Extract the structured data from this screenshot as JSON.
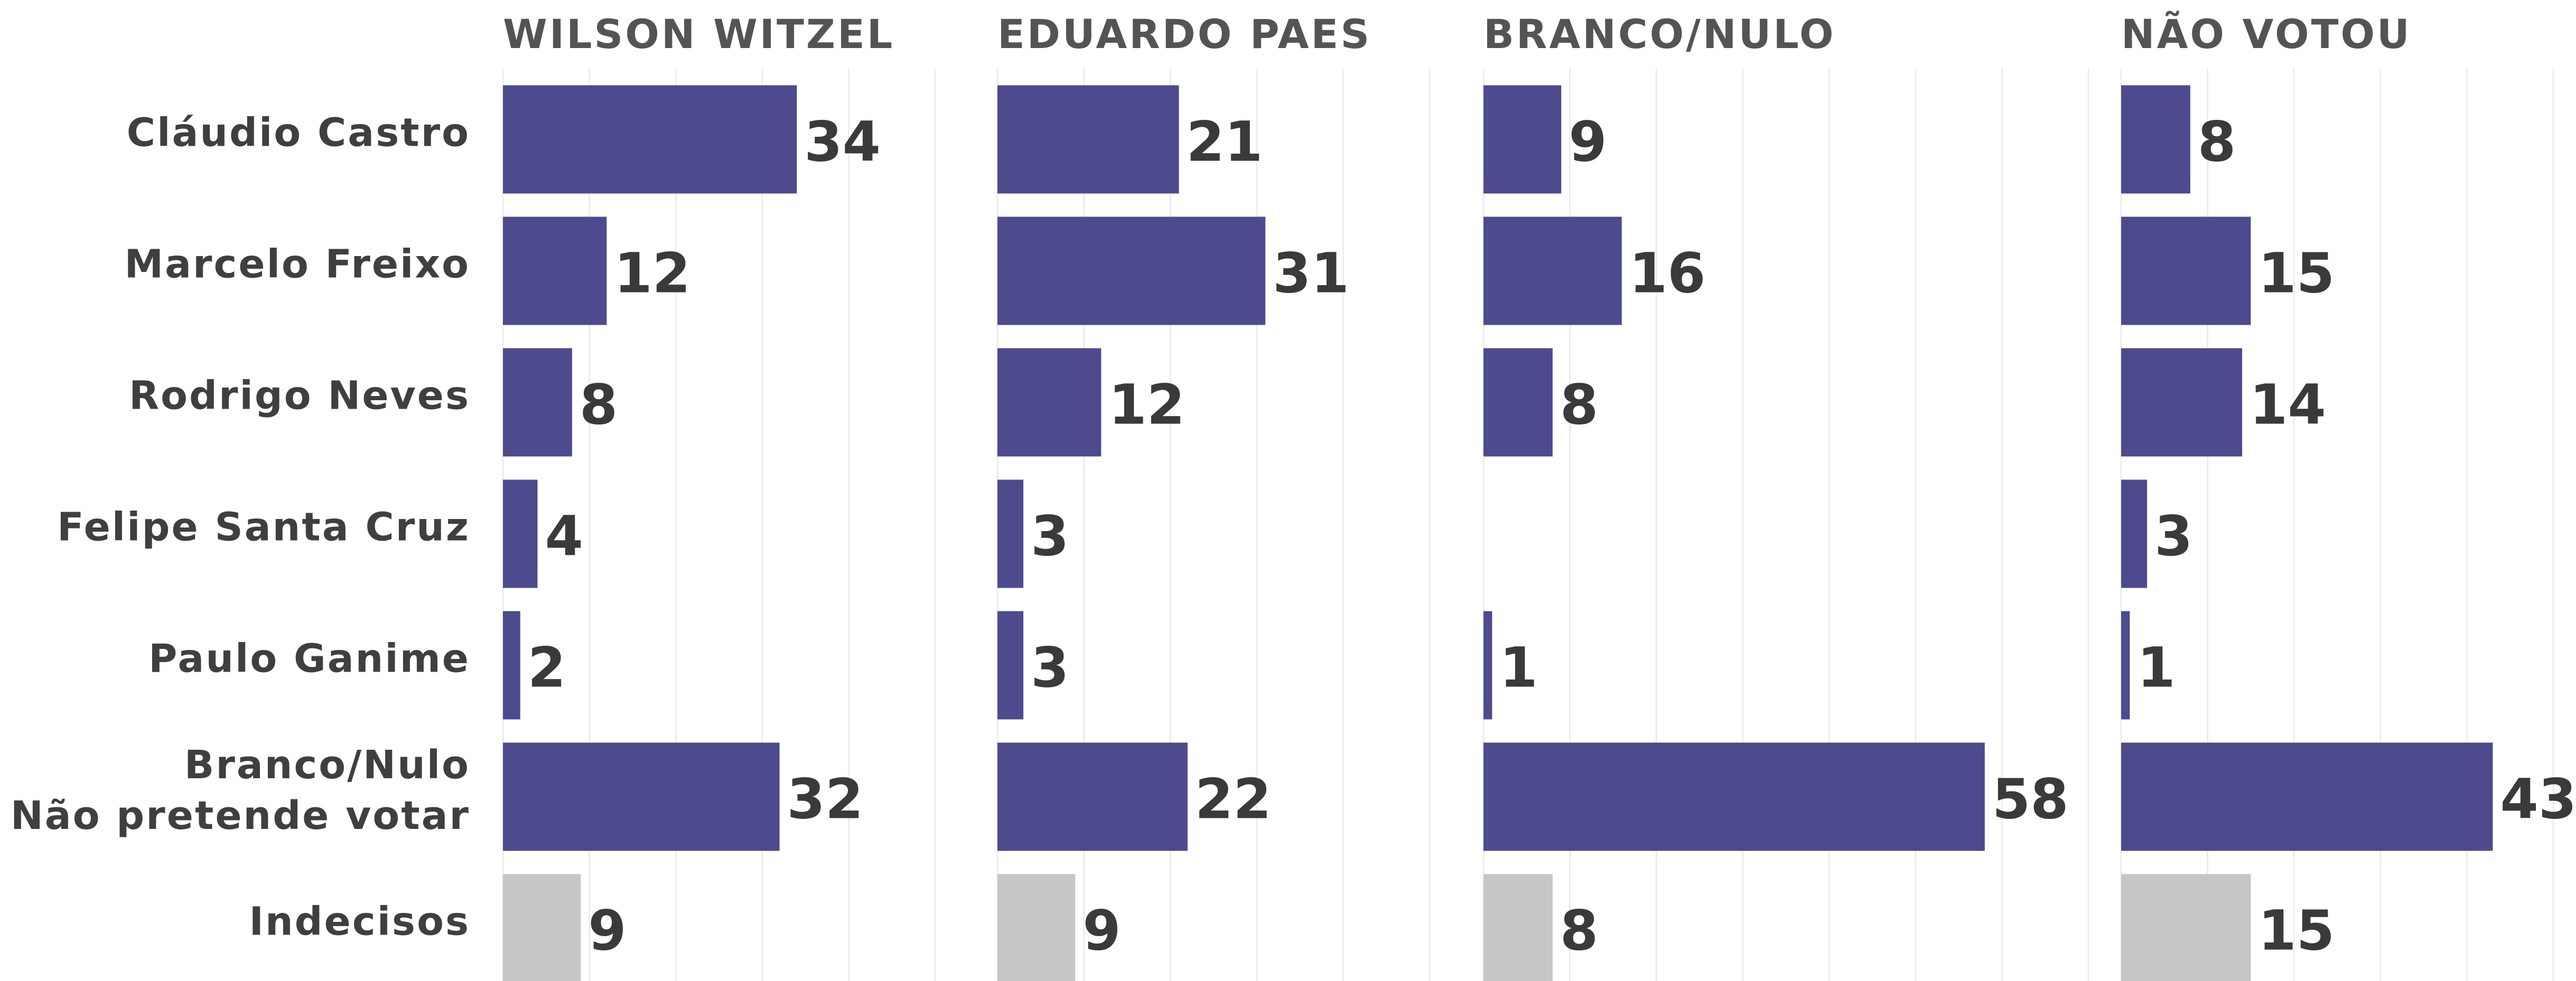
{
  "chart_data": [
    {
      "type": "bar",
      "title": "WILSON WITZEL",
      "categories": [
        "Cláudio Castro",
        "Marcelo Freixo",
        "Rodrigo Neves",
        "Felipe Santa Cruz",
        "Paulo Ganime",
        "Branco/Nulo\nNão pretende votar",
        "Indecisos"
      ],
      "values": [
        34,
        12,
        8,
        4,
        2,
        32,
        9
      ],
      "colors": [
        "#4e4a8e",
        "#4e4a8e",
        "#4e4a8e",
        "#4e4a8e",
        "#4e4a8e",
        "#4e4a8e",
        "#c6c6c6"
      ],
      "xlim": [
        0,
        55
      ],
      "xticks": [
        0,
        10,
        20,
        30,
        40,
        50
      ],
      "grid": true
    },
    {
      "type": "bar",
      "title": "EDUARDO PAES",
      "values": [
        21,
        31,
        12,
        3,
        3,
        22,
        9
      ],
      "colors": [
        "#4e4a8e",
        "#4e4a8e",
        "#4e4a8e",
        "#4e4a8e",
        "#4e4a8e",
        "#4e4a8e",
        "#c6c6c6"
      ],
      "xlim": [
        0,
        55
      ],
      "xticks": [
        0,
        10,
        20,
        30,
        40,
        50
      ],
      "grid": true
    },
    {
      "type": "bar",
      "title": "BRANCO/NULO",
      "values": [
        9,
        16,
        8,
        null,
        1,
        58,
        8
      ],
      "colors": [
        "#4e4a8e",
        "#4e4a8e",
        "#4e4a8e",
        "#4e4a8e",
        "#4e4a8e",
        "#4e4a8e",
        "#c6c6c6"
      ],
      "xlim": [
        0,
        72
      ],
      "xticks": [
        0,
        10,
        20,
        30,
        40,
        50,
        60,
        70
      ],
      "grid": true
    },
    {
      "type": "bar",
      "title": "NÃO VOTOU",
      "values": [
        8,
        15,
        14,
        3,
        1,
        43,
        15
      ],
      "colors": [
        "#4e4a8e",
        "#4e4a8e",
        "#4e4a8e",
        "#4e4a8e",
        "#4e4a8e",
        "#4e4a8e",
        "#c6c6c6"
      ],
      "xlim": [
        0,
        52
      ],
      "xticks": [
        0,
        10,
        20,
        30,
        40,
        50
      ],
      "grid": true
    }
  ]
}
